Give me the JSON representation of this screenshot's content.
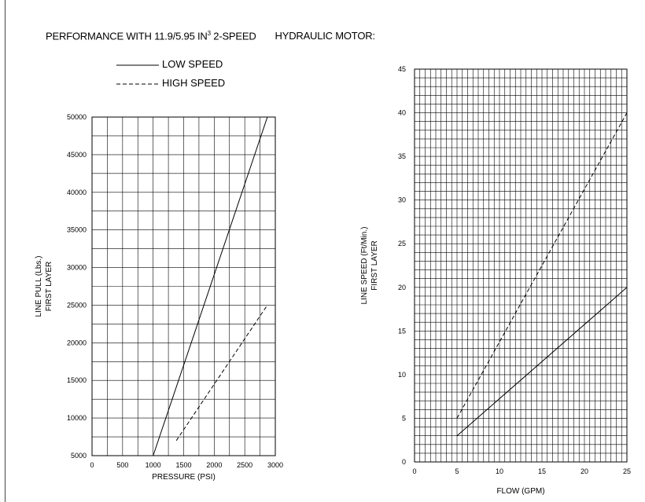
{
  "header": {
    "title_main": "PERFORMANCE WITH 11.9/5.95 IN",
    "title_sup": "3",
    "title_rest": " 2-SPEED",
    "title_tail": "HYDRAULIC MOTOR:"
  },
  "legend": {
    "low_label": "LOW SPEED",
    "high_label": "HIGH SPEED"
  },
  "chart_data": [
    {
      "type": "line",
      "ylabel_line1": "LINE PULL (Lbs.)",
      "ylabel_line2": "FIRST LAYER",
      "xlabel": "PRESSURE (PSI)",
      "xlim": [
        0,
        3000
      ],
      "ylim": [
        5000,
        50000
      ],
      "x_ticks": [
        0,
        500,
        1000,
        1500,
        2000,
        2500,
        3000
      ],
      "y_ticks": [
        5000,
        10000,
        15000,
        20000,
        25000,
        30000,
        35000,
        40000,
        45000,
        50000
      ],
      "grid": true,
      "series": [
        {
          "name": "LOW SPEED",
          "style": "solid",
          "x": [
            1000,
            2870
          ],
          "y": [
            5000,
            50000
          ]
        },
        {
          "name": "HIGH SPEED",
          "style": "dashed",
          "x": [
            1380,
            2870
          ],
          "y": [
            7000,
            25000
          ]
        }
      ]
    },
    {
      "type": "line",
      "ylabel_line1": "LINE SPEED (Ft/Min.)",
      "ylabel_line2": "FIRST LAYER",
      "xlabel": "FLOW (GPM)",
      "xlim": [
        0,
        25
      ],
      "ylim": [
        0,
        45
      ],
      "x_ticks": [
        0,
        5,
        10,
        15,
        20,
        25
      ],
      "y_ticks": [
        0,
        5,
        10,
        15,
        20,
        25,
        30,
        35,
        40,
        45
      ],
      "grid": true,
      "series": [
        {
          "name": "LOW SPEED",
          "style": "solid",
          "x": [
            5,
            25
          ],
          "y": [
            3,
            20
          ]
        },
        {
          "name": "HIGH SPEED",
          "style": "dashed",
          "x": [
            5,
            25
          ],
          "y": [
            5,
            40
          ]
        }
      ]
    }
  ]
}
